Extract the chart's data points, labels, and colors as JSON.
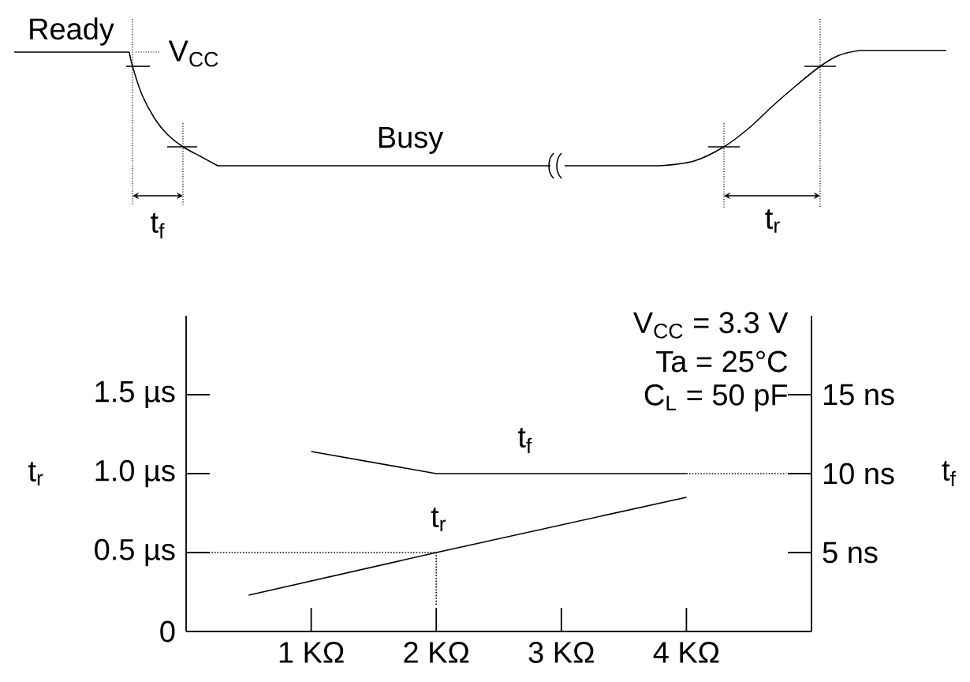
{
  "chart_data": {
    "type": "line",
    "xlim": [
      0,
      5
    ],
    "xticks": [
      {
        "value": 1,
        "label": "1 KΩ"
      },
      {
        "value": 2,
        "label": "2 KΩ"
      },
      {
        "value": 3,
        "label": "3 KΩ"
      },
      {
        "value": 4,
        "label": "4 KΩ"
      }
    ],
    "ylim": [
      0,
      2
    ],
    "yticks": [
      {
        "value": 0,
        "label": "0"
      },
      {
        "value": 0.5,
        "label": "0.5 µs"
      },
      {
        "value": 1,
        "label": "1.0 µs"
      },
      {
        "value": 1.5,
        "label": "1.5 µs"
      }
    ],
    "y2lim": [
      0,
      20
    ],
    "y2ticks": [
      {
        "value": 5,
        "label": "5 ns"
      },
      {
        "value": 10,
        "label": "10 ns"
      },
      {
        "value": 15,
        "label": "15 ns"
      }
    ],
    "ylabel": "t$_{r}$",
    "y2label": "t$_{f}$",
    "marker": "none",
    "line_style": "solid",
    "series": [
      {
        "name": "t$_{f}$",
        "color": "#000000",
        "axis": "y2",
        "x": [
          1,
          2,
          4
        ],
        "values": [
          11.4,
          10,
          10
        ]
      },
      {
        "color": "#000000",
        "axis": "y2",
        "x": [
          4,
          4.8
        ],
        "values": [
          10,
          10
        ],
        "line_style": "dotted"
      },
      {
        "name": "t$_{r}$",
        "color": "#000000",
        "x": [
          0.5,
          2,
          4
        ],
        "values": [
          0.23,
          0.5,
          0.85
        ]
      },
      {
        "color": "#000000",
        "x": [
          0,
          2,
          2
        ],
        "values": [
          0.5,
          0.5,
          0.17
        ],
        "line_style": "dotted"
      }
    ],
    "annotations": [
      "Ready",
      "V$_{CC}$",
      "Busy",
      "t$_{f}$",
      "t$_{r}$",
      "V$_{CC}$ = 3.3 V",
      "Ta = 25°C",
      "C$_{L}$ = 50 pF"
    ]
  }
}
